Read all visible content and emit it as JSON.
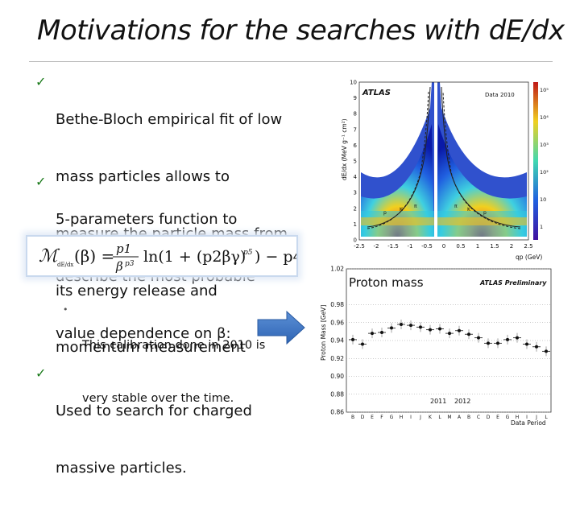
{
  "slide": {
    "title": "Motivations for the searches with dE/dx",
    "bullets": [
      {
        "check": "✓",
        "lines": [
          "Bethe-Bloch empirical fit of low",
          "mass particles allows to",
          "measure the particle mass from",
          "its energy release and",
          "momentum measurement"
        ]
      },
      {
        "check": "✓",
        "lines": [
          "5-parameters function to",
          "describe the most probable",
          "value dependence on β:"
        ]
      }
    ],
    "sub_bullet": {
      "marker": "•",
      "lines": [
        "This calibration done in 2010 is",
        "very stable over the time."
      ]
    },
    "last_bullet": {
      "check": "✓",
      "lines": [
        "Used to search for charged",
        "massive particles."
      ]
    },
    "proton_label": "Proton mass"
  },
  "formula": {
    "lhs": "ℳ",
    "sub": "dE/dx",
    "body": "(β) =",
    "frac_num": "p1",
    "frac_den": "β",
    "den_exp": "p3",
    "ln": "ln(1 + (p2βγ)",
    "p5": "p5",
    "tail": ") − p4"
  },
  "plot_dedx": {
    "ylabel": "dE/dx (MeV g⁻¹ cm²)",
    "xlabel": "qp (GeV)",
    "brand": "ATLAS",
    "legend": "Data 2010",
    "y_ticks": [
      "10",
      "9",
      "8",
      "7",
      "6",
      "5",
      "4",
      "3",
      "2",
      "1",
      "0"
    ],
    "x_ticks": [
      "-2.5",
      "-2",
      "-1.5",
      "-1",
      "-0.5",
      "0",
      "0.5",
      "1",
      "1.5",
      "2",
      "2.5"
    ],
    "z_ticks": [
      "10⁵",
      "10⁴",
      "10³",
      "10²",
      "10",
      "1"
    ],
    "curve_labels": [
      "π",
      "K",
      "p",
      "π",
      "K",
      "p"
    ],
    "colors": {
      "bg": "#0a1aa8",
      "mid": "#3fd0e0",
      "hot": "#f0d020",
      "peak": "#c01818"
    }
  },
  "chart_data": {
    "type": "scatter",
    "title": "",
    "ylabel": "Proton Mass [GeV]",
    "xlabel": "Data Period",
    "brand": "ATLAS Preliminary",
    "ylim": [
      0.86,
      1.02
    ],
    "y_ticks": [
      0.86,
      0.88,
      0.9,
      0.92,
      0.94,
      0.96,
      0.98,
      1.02
    ],
    "categories": [
      "B",
      "D",
      "E",
      "F",
      "G",
      "H",
      "I",
      "J",
      "K",
      "L",
      "M",
      "A",
      "B",
      "C",
      "D",
      "E",
      "G",
      "H",
      "I",
      "J",
      "L"
    ],
    "values": [
      0.941,
      0.936,
      0.948,
      0.949,
      0.954,
      0.958,
      0.957,
      0.955,
      0.952,
      0.953,
      0.948,
      0.951,
      0.947,
      0.943,
      0.937,
      0.937,
      0.941,
      0.943,
      0.936,
      0.933,
      0.928
    ],
    "year_labels": [
      "2011",
      "2012"
    ],
    "series_color": "#111111"
  }
}
